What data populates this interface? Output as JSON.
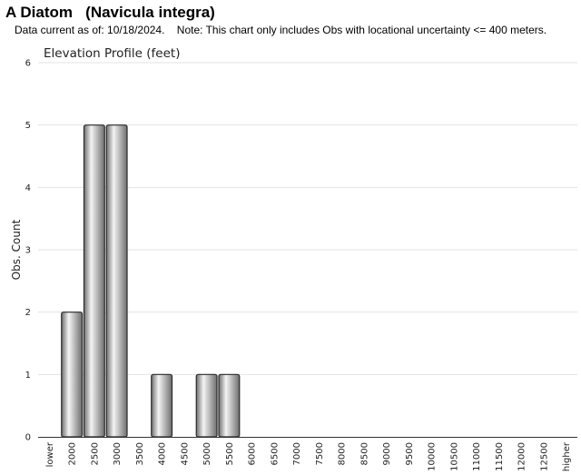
{
  "header": {
    "title": "A Diatom   (Navicula integra)",
    "subtitle": "Data current as of: 10/18/2024.    Note: This chart only includes Obs with locational uncertainty <= 400 meters."
  },
  "chart_data": {
    "type": "bar",
    "title": "Elevation Profile (feet)",
    "xlabel": "",
    "ylabel": "Obs. Count",
    "ylim": [
      0,
      6
    ],
    "yticks": [
      0,
      1,
      2,
      3,
      4,
      5,
      6
    ],
    "grid": true,
    "categories": [
      "lower",
      "2000",
      "2500",
      "3000",
      "3500",
      "4000",
      "4500",
      "5000",
      "5500",
      "6000",
      "6500",
      "7000",
      "7500",
      "8000",
      "8500",
      "9000",
      "9500",
      "10000",
      "10500",
      "11000",
      "11500",
      "12000",
      "12500",
      "higher"
    ],
    "values": [
      0,
      2,
      5,
      5,
      0,
      1,
      0,
      1,
      1,
      0,
      0,
      0,
      0,
      0,
      0,
      0,
      0,
      0,
      0,
      0,
      0,
      0,
      0,
      0
    ],
    "colors": {
      "bar_light": "#f4f4f4",
      "bar_dark": "#6e6e6e",
      "bar_stroke": "#2a2a2a",
      "grid": "#e3e3e3",
      "axis": "#333333"
    }
  }
}
